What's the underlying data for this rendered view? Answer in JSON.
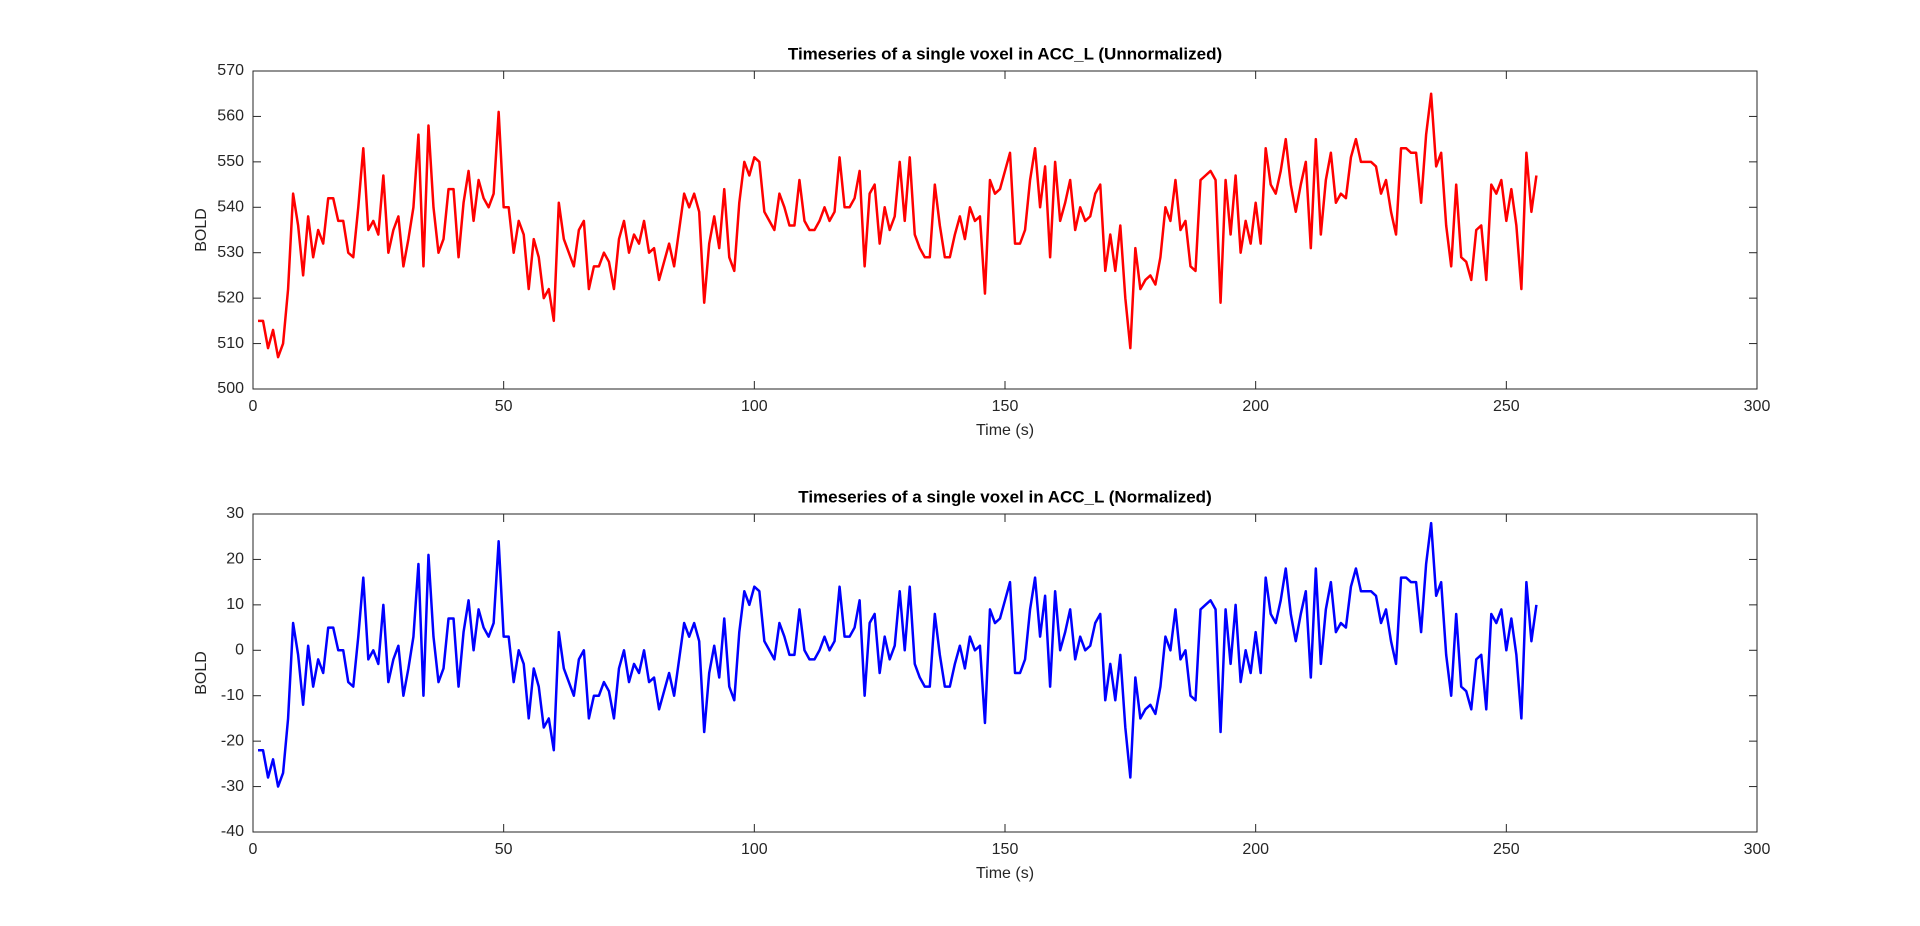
{
  "chart_data": [
    {
      "type": "line",
      "title": "Timeseries of a single voxel in ACC_L (Unnormalized)",
      "x_label": "Time (s)",
      "y_label": "BOLD",
      "xlim": [
        0,
        300
      ],
      "xticks": [
        0,
        50,
        100,
        150,
        200,
        250,
        300
      ],
      "ylim": [
        500,
        570
      ],
      "yticks": [
        500,
        510,
        520,
        530,
        540,
        550,
        560,
        570
      ],
      "x": [
        1,
        2,
        3,
        4,
        5,
        6,
        7,
        8,
        9,
        10,
        11,
        12,
        13,
        14,
        15,
        16,
        17,
        18,
        19,
        20,
        21,
        22,
        23,
        24,
        25,
        26,
        27,
        28,
        29,
        30,
        31,
        32,
        33,
        34,
        35,
        36,
        37,
        38,
        39,
        40,
        41,
        42,
        43,
        44,
        45,
        46,
        47,
        48,
        49,
        50,
        51,
        52,
        53,
        54,
        55,
        56,
        57,
        58,
        59,
        60,
        61,
        62,
        63,
        64,
        65,
        66,
        67,
        68,
        69,
        70,
        71,
        72,
        73,
        74,
        75,
        76,
        77,
        78,
        79,
        80,
        81,
        82,
        83,
        84,
        85,
        86,
        87,
        88,
        89,
        90,
        91,
        92,
        93,
        94,
        95,
        96,
        97,
        98,
        99,
        100,
        101,
        102,
        103,
        104,
        105,
        106,
        107,
        108,
        109,
        110,
        111,
        112,
        113,
        114,
        115,
        116,
        117,
        118,
        119,
        120,
        121,
        122,
        123,
        124,
        125,
        126,
        127,
        128,
        129,
        130,
        131,
        132,
        133,
        134,
        135,
        136,
        137,
        138,
        139,
        140,
        141,
        142,
        143,
        144,
        145,
        146,
        147,
        148,
        149,
        150,
        151,
        152,
        153,
        154,
        155,
        156,
        157,
        158,
        159,
        160,
        161,
        162,
        163,
        164,
        165,
        166,
        167,
        168,
        169,
        170,
        171,
        172,
        173,
        174,
        175,
        176,
        177,
        178,
        179,
        180,
        181,
        182,
        183,
        184,
        185,
        186,
        187,
        188,
        189,
        190,
        191,
        192,
        193,
        194,
        195,
        196,
        197,
        198,
        199,
        200,
        201,
        202,
        203,
        204,
        205,
        206,
        207,
        208,
        209,
        210,
        211,
        212,
        213,
        214,
        215,
        216,
        217,
        218,
        219,
        220,
        221,
        222,
        223,
        224,
        225,
        226,
        227,
        228,
        229,
        230,
        231,
        232,
        233,
        234,
        235,
        236,
        237,
        238,
        239,
        240,
        241,
        242,
        243,
        244,
        245,
        246,
        247,
        248,
        249,
        250,
        251,
        252,
        253,
        254,
        255,
        256
      ],
      "series": [
        {
          "color": "#ff0000",
          "values": [
            515,
            515,
            509,
            513,
            507,
            510,
            522,
            543,
            536,
            525,
            538,
            529,
            535,
            532,
            542,
            542,
            537,
            537,
            530,
            529,
            540,
            553,
            535,
            537,
            534,
            547,
            530,
            535,
            538,
            527,
            533,
            540,
            556,
            527,
            558,
            540,
            530,
            533,
            544,
            544,
            529,
            541,
            548,
            537,
            546,
            542,
            540,
            543,
            561,
            540,
            540,
            530,
            537,
            534,
            522,
            533,
            529,
            520,
            522,
            515,
            541,
            533,
            530,
            527,
            535,
            537,
            522,
            527,
            527,
            530,
            528,
            522,
            533,
            537,
            530,
            534,
            532,
            537,
            530,
            531,
            524,
            528,
            532,
            527,
            535,
            543,
            540,
            543,
            539,
            519,
            532,
            538,
            531,
            544,
            529,
            526,
            541,
            550,
            547,
            551,
            550,
            539,
            537,
            535,
            543,
            540,
            536,
            536,
            546,
            537,
            535,
            535,
            537,
            540,
            537,
            539,
            551,
            540,
            540,
            542,
            548,
            527,
            543,
            545,
            532,
            540,
            535,
            538,
            550,
            537,
            551,
            534,
            531,
            529,
            529,
            545,
            536,
            529,
            529,
            534,
            538,
            533,
            540,
            537,
            538,
            521,
            546,
            543,
            544,
            548,
            552,
            532,
            532,
            535,
            546,
            553,
            540,
            549,
            529,
            550,
            537,
            541,
            546,
            535,
            540,
            537,
            538,
            543,
            545,
            526,
            534,
            526,
            536,
            520,
            509,
            531,
            522,
            524,
            525,
            523,
            529,
            540,
            537,
            546,
            535,
            537,
            527,
            526,
            546,
            547,
            548,
            546,
            519,
            546,
            534,
            547,
            530,
            537,
            532,
            541,
            532,
            553,
            545,
            543,
            548,
            555,
            545,
            539,
            545,
            550,
            531,
            555,
            534,
            546,
            552,
            541,
            543,
            542,
            551,
            555,
            550,
            550,
            550,
            549,
            543,
            546,
            539,
            534,
            553,
            553,
            552,
            552,
            541,
            556,
            565,
            549,
            552,
            536,
            527,
            545,
            529,
            528,
            524,
            535,
            536,
            524,
            545,
            543,
            546,
            537,
            544,
            536,
            522,
            552,
            539,
            547
          ]
        }
      ]
    },
    {
      "type": "line",
      "title": "Timeseries of a single voxel in ACC_L (Normalized)",
      "x_label": "Time (s)",
      "y_label": "BOLD",
      "xlim": [
        0,
        300
      ],
      "xticks": [
        0,
        50,
        100,
        150,
        200,
        250,
        300
      ],
      "ylim": [
        -40,
        30
      ],
      "yticks": [
        -40,
        -30,
        -20,
        -10,
        0,
        10,
        20,
        30
      ],
      "x": [
        1,
        2,
        3,
        4,
        5,
        6,
        7,
        8,
        9,
        10,
        11,
        12,
        13,
        14,
        15,
        16,
        17,
        18,
        19,
        20,
        21,
        22,
        23,
        24,
        25,
        26,
        27,
        28,
        29,
        30,
        31,
        32,
        33,
        34,
        35,
        36,
        37,
        38,
        39,
        40,
        41,
        42,
        43,
        44,
        45,
        46,
        47,
        48,
        49,
        50,
        51,
        52,
        53,
        54,
        55,
        56,
        57,
        58,
        59,
        60,
        61,
        62,
        63,
        64,
        65,
        66,
        67,
        68,
        69,
        70,
        71,
        72,
        73,
        74,
        75,
        76,
        77,
        78,
        79,
        80,
        81,
        82,
        83,
        84,
        85,
        86,
        87,
        88,
        89,
        90,
        91,
        92,
        93,
        94,
        95,
        96,
        97,
        98,
        99,
        100,
        101,
        102,
        103,
        104,
        105,
        106,
        107,
        108,
        109,
        110,
        111,
        112,
        113,
        114,
        115,
        116,
        117,
        118,
        119,
        120,
        121,
        122,
        123,
        124,
        125,
        126,
        127,
        128,
        129,
        130,
        131,
        132,
        133,
        134,
        135,
        136,
        137,
        138,
        139,
        140,
        141,
        142,
        143,
        144,
        145,
        146,
        147,
        148,
        149,
        150,
        151,
        152,
        153,
        154,
        155,
        156,
        157,
        158,
        159,
        160,
        161,
        162,
        163,
        164,
        165,
        166,
        167,
        168,
        169,
        170,
        171,
        172,
        173,
        174,
        175,
        176,
        177,
        178,
        179,
        180,
        181,
        182,
        183,
        184,
        185,
        186,
        187,
        188,
        189,
        190,
        191,
        192,
        193,
        194,
        195,
        196,
        197,
        198,
        199,
        200,
        201,
        202,
        203,
        204,
        205,
        206,
        207,
        208,
        209,
        210,
        211,
        212,
        213,
        214,
        215,
        216,
        217,
        218,
        219,
        220,
        221,
        222,
        223,
        224,
        225,
        226,
        227,
        228,
        229,
        230,
        231,
        232,
        233,
        234,
        235,
        236,
        237,
        238,
        239,
        240,
        241,
        242,
        243,
        244,
        245,
        246,
        247,
        248,
        249,
        250,
        251,
        252,
        253,
        254,
        255,
        256
      ],
      "series": [
        {
          "color": "#0000ff",
          "values": [
            -22,
            -22,
            -28,
            -24,
            -30,
            -27,
            -15,
            6,
            -1,
            -12,
            1,
            -8,
            -2,
            -5,
            5,
            5,
            0,
            0,
            -7,
            -8,
            3,
            16,
            -2,
            0,
            -3,
            10,
            -7,
            -2,
            1,
            -10,
            -4,
            3,
            19,
            -10,
            21,
            3,
            -7,
            -4,
            7,
            7,
            -8,
            4,
            11,
            0,
            9,
            5,
            3,
            6,
            24,
            3,
            3,
            -7,
            0,
            -3,
            -15,
            -4,
            -8,
            -17,
            -15,
            -22,
            4,
            -4,
            -7,
            -10,
            -2,
            0,
            -15,
            -10,
            -10,
            -7,
            -9,
            -15,
            -4,
            0,
            -7,
            -3,
            -5,
            0,
            -7,
            -6,
            -13,
            -9,
            -5,
            -10,
            -2,
            6,
            3,
            6,
            2,
            -18,
            -5,
            1,
            -6,
            7,
            -8,
            -11,
            4,
            13,
            10,
            14,
            13,
            2,
            0,
            -2,
            6,
            3,
            -1,
            -1,
            9,
            0,
            -2,
            -2,
            0,
            3,
            0,
            2,
            14,
            3,
            3,
            5,
            11,
            -10,
            6,
            8,
            -5,
            3,
            -2,
            1,
            13,
            0,
            14,
            -3,
            -6,
            -8,
            -8,
            8,
            -1,
            -8,
            -8,
            -3,
            1,
            -4,
            3,
            0,
            1,
            -16,
            9,
            6,
            7,
            11,
            15,
            -5,
            -5,
            -2,
            9,
            16,
            3,
            12,
            -8,
            13,
            0,
            4,
            9,
            -2,
            3,
            0,
            1,
            6,
            8,
            -11,
            -3,
            -11,
            -1,
            -17,
            -28,
            -6,
            -15,
            -13,
            -12,
            -14,
            -8,
            3,
            0,
            9,
            -2,
            0,
            -10,
            -11,
            9,
            10,
            11,
            9,
            -18,
            9,
            -3,
            10,
            -7,
            0,
            -5,
            4,
            -5,
            16,
            8,
            6,
            11,
            18,
            8,
            2,
            8,
            13,
            -6,
            18,
            -3,
            9,
            15,
            4,
            6,
            5,
            14,
            18,
            13,
            13,
            13,
            12,
            6,
            9,
            2,
            -3,
            16,
            16,
            15,
            15,
            4,
            19,
            28,
            12,
            15,
            -1,
            -10,
            8,
            -8,
            -9,
            -13,
            -2,
            -1,
            -13,
            8,
            6,
            9,
            0,
            7,
            -1,
            -15,
            15,
            2,
            10
          ]
        }
      ]
    }
  ]
}
